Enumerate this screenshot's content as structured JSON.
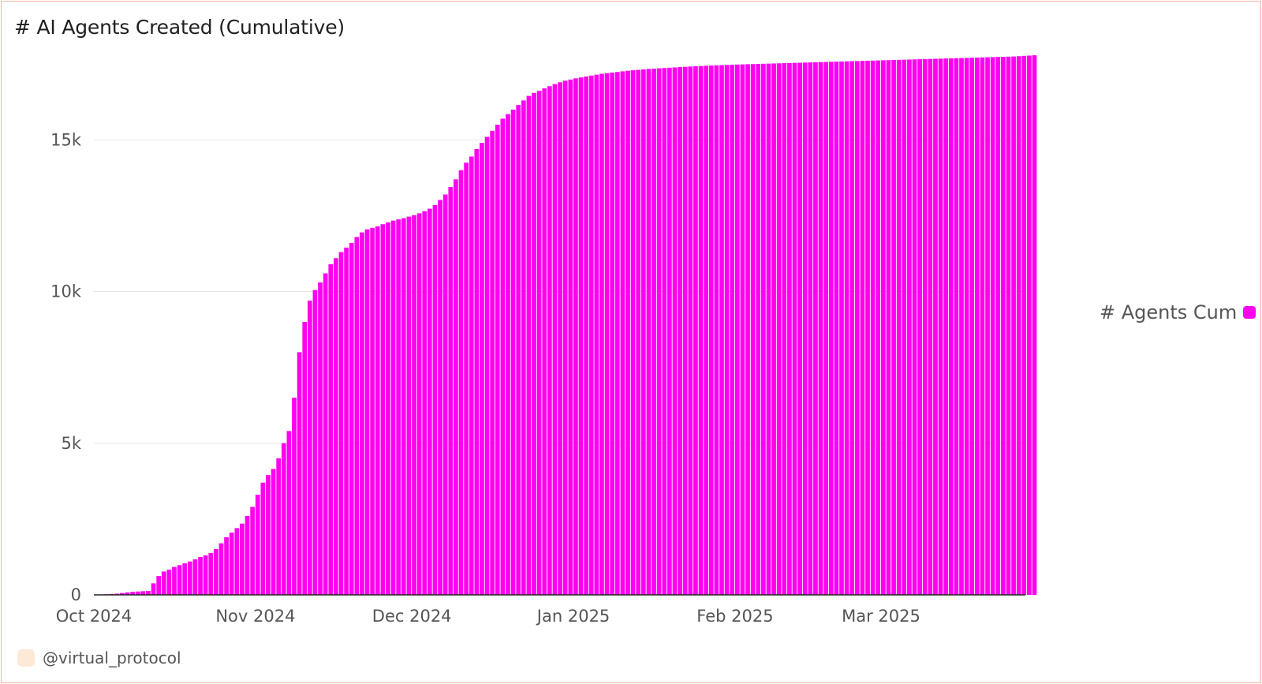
{
  "title": "# AI Agents Created (Cumulative)",
  "footer": {
    "handle": "@virtual_protocol",
    "avatar_icon": "user-avatar-icon"
  },
  "chart_data": {
    "type": "bar",
    "title": "# AI Agents Created (Cumulative)",
    "xlabel": "",
    "ylabel": "",
    "x_ticks": [
      "Oct 2024",
      "Nov 2024",
      "Dec 2024",
      "Jan 2025",
      "Feb 2025",
      "Mar 2025"
    ],
    "y_ticks": [
      "0",
      "5k",
      "10k",
      "15k"
    ],
    "ylim": [
      0,
      18000
    ],
    "grid": true,
    "legend_position": "right",
    "color": "#ff00f0",
    "series": [
      {
        "name": "# Agents Cum",
        "start_date": "2024-10-01",
        "values": [
          0,
          10,
          20,
          30,
          40,
          60,
          80,
          100,
          110,
          120,
          130,
          380,
          620,
          770,
          830,
          920,
          980,
          1040,
          1100,
          1170,
          1250,
          1300,
          1380,
          1510,
          1700,
          1900,
          2050,
          2200,
          2350,
          2600,
          2900,
          3300,
          3700,
          3950,
          4150,
          4500,
          5000,
          5400,
          6500,
          8000,
          9000,
          9700,
          10050,
          10300,
          10600,
          10900,
          11100,
          11300,
          11450,
          11600,
          11800,
          11950,
          12050,
          12100,
          12150,
          12220,
          12280,
          12340,
          12380,
          12420,
          12470,
          12520,
          12580,
          12650,
          12730,
          12850,
          13020,
          13200,
          13450,
          13700,
          14000,
          14250,
          14450,
          14700,
          14900,
          15100,
          15300,
          15500,
          15700,
          15850,
          16000,
          16150,
          16300,
          16450,
          16550,
          16620,
          16700,
          16770,
          16840,
          16900,
          16950,
          16990,
          17030,
          17060,
          17090,
          17120,
          17150,
          17180,
          17200,
          17220,
          17240,
          17260,
          17280,
          17295,
          17310,
          17325,
          17340,
          17350,
          17360,
          17370,
          17380,
          17390,
          17400,
          17410,
          17420,
          17428,
          17436,
          17444,
          17452,
          17460,
          17466,
          17472,
          17478,
          17484,
          17490,
          17495,
          17500,
          17505,
          17510,
          17515,
          17520,
          17525,
          17530,
          17535,
          17540,
          17545,
          17550,
          17555,
          17560,
          17565,
          17570,
          17575,
          17580,
          17585,
          17590,
          17595,
          17600,
          17605,
          17610,
          17615,
          17620,
          17625,
          17630,
          17635,
          17640,
          17645,
          17650,
          17655,
          17660,
          17665,
          17670,
          17675,
          17680,
          17685,
          17690,
          17695,
          17700,
          17705,
          17710,
          17715,
          17720,
          17725,
          17730,
          17735,
          17740,
          17745,
          17750,
          17760,
          17770,
          17780,
          17790
        ]
      }
    ]
  }
}
